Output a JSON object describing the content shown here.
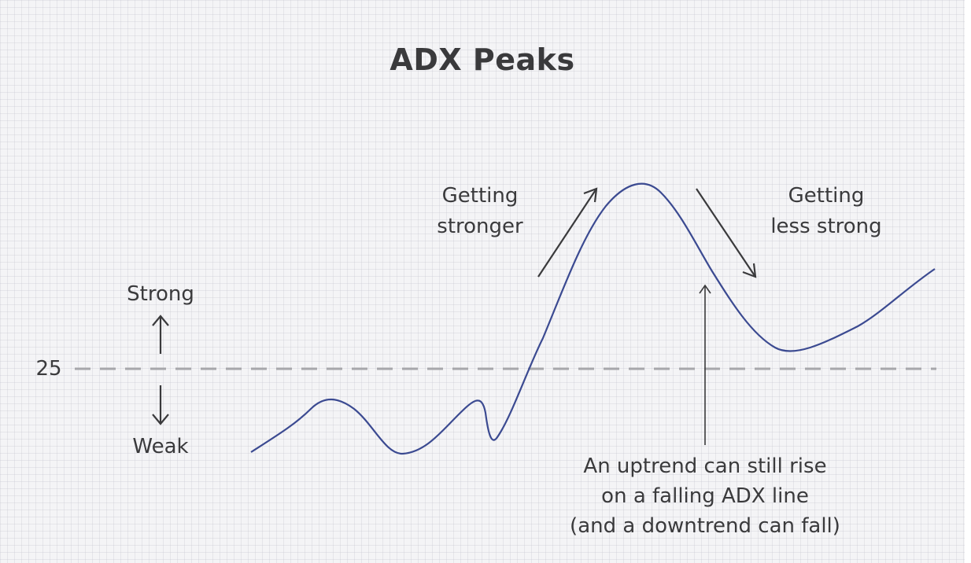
{
  "title": "ADX Peaks",
  "threshold_label": "25",
  "strong_label": "Strong",
  "weak_label": "Weak",
  "rising_label_line1": "Getting",
  "rising_label_line2": "stronger",
  "falling_label_line1": "Getting",
  "falling_label_line2": "less strong",
  "note_line1": "An uptrend can still rise",
  "note_line2": "on a falling ADX line",
  "note_line3": "(and a downtrend can fall)",
  "colors": {
    "adx_line": "#3b4a91",
    "threshold_line": "#a7a7ab",
    "arrows": "#3a3a3c"
  }
}
